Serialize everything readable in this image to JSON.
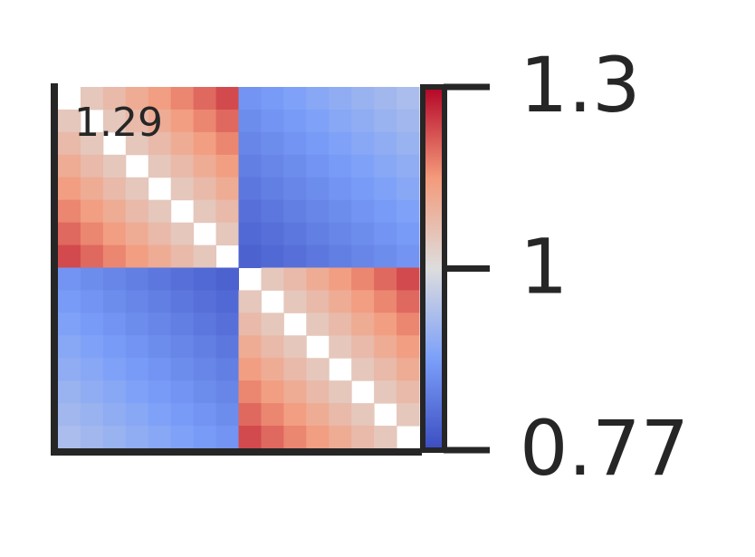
{
  "chart_data": {
    "type": "heatmap",
    "annotation": "1.29",
    "colormap": [
      "#3b4cc0",
      "#7b9ff9",
      "#dddddd",
      "#f49a7b",
      "#b40426"
    ],
    "clim": [
      0.77,
      1.3
    ],
    "vcenter": 1,
    "cticks": [
      0.77,
      1,
      1.3
    ],
    "matrix": [
      [
        null,
        1.05,
        1.08,
        1.11,
        1.14,
        1.17,
        1.2,
        1.23,
        0.87,
        0.88,
        0.89,
        0.9,
        0.91,
        0.92,
        0.93,
        0.94
      ],
      [
        1.05,
        null,
        1.05,
        1.08,
        1.11,
        1.14,
        1.17,
        1.2,
        0.86,
        0.87,
        0.88,
        0.89,
        0.9,
        0.91,
        0.92,
        0.93
      ],
      [
        1.08,
        1.05,
        null,
        1.05,
        1.08,
        1.11,
        1.14,
        1.17,
        0.85,
        0.86,
        0.87,
        0.88,
        0.89,
        0.9,
        0.91,
        0.92
      ],
      [
        1.11,
        1.08,
        1.05,
        null,
        1.05,
        1.08,
        1.11,
        1.14,
        0.84,
        0.85,
        0.86,
        0.87,
        0.88,
        0.89,
        0.9,
        0.91
      ],
      [
        1.14,
        1.11,
        1.08,
        1.05,
        null,
        1.05,
        1.08,
        1.11,
        0.83,
        0.84,
        0.85,
        0.86,
        0.87,
        0.88,
        0.89,
        0.9
      ],
      [
        1.17,
        1.14,
        1.11,
        1.08,
        1.05,
        null,
        1.05,
        1.08,
        0.82,
        0.83,
        0.84,
        0.85,
        0.86,
        0.87,
        0.88,
        0.89
      ],
      [
        1.2,
        1.17,
        1.14,
        1.11,
        1.08,
        1.05,
        null,
        1.05,
        0.81,
        0.82,
        0.83,
        0.84,
        0.85,
        0.86,
        0.87,
        0.88
      ],
      [
        1.23,
        1.2,
        1.17,
        1.14,
        1.11,
        1.08,
        1.05,
        null,
        0.8,
        0.81,
        0.82,
        0.83,
        0.84,
        0.85,
        0.86,
        0.87
      ],
      [
        0.87,
        0.86,
        0.85,
        0.84,
        0.83,
        0.82,
        0.81,
        0.8,
        null,
        1.05,
        1.08,
        1.11,
        1.14,
        1.17,
        1.2,
        1.23
      ],
      [
        0.88,
        0.87,
        0.86,
        0.85,
        0.84,
        0.83,
        0.82,
        0.81,
        1.05,
        null,
        1.05,
        1.08,
        1.11,
        1.14,
        1.17,
        1.2
      ],
      [
        0.89,
        0.88,
        0.87,
        0.86,
        0.85,
        0.84,
        0.83,
        0.82,
        1.08,
        1.05,
        null,
        1.05,
        1.08,
        1.11,
        1.14,
        1.17
      ],
      [
        0.9,
        0.89,
        0.88,
        0.87,
        0.86,
        0.85,
        0.84,
        0.83,
        1.11,
        1.08,
        1.05,
        null,
        1.05,
        1.08,
        1.11,
        1.14
      ],
      [
        0.91,
        0.9,
        0.89,
        0.88,
        0.87,
        0.86,
        0.85,
        0.84,
        1.14,
        1.11,
        1.08,
        1.05,
        null,
        1.05,
        1.08,
        1.11
      ],
      [
        0.92,
        0.91,
        0.9,
        0.89,
        0.88,
        0.87,
        0.86,
        0.85,
        1.17,
        1.14,
        1.11,
        1.08,
        1.05,
        null,
        1.05,
        1.08
      ],
      [
        0.93,
        0.92,
        0.91,
        0.9,
        0.89,
        0.88,
        0.87,
        0.86,
        1.2,
        1.17,
        1.14,
        1.11,
        1.08,
        1.05,
        null,
        1.05
      ],
      [
        0.94,
        0.93,
        0.92,
        0.91,
        0.9,
        0.89,
        0.88,
        0.87,
        1.23,
        1.2,
        1.17,
        1.14,
        1.11,
        1.08,
        1.05,
        null
      ]
    ]
  }
}
